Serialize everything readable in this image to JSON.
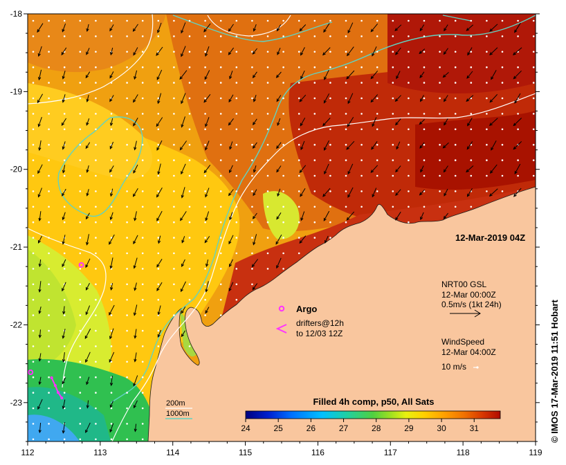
{
  "chart_data": {
    "type": "heatmap",
    "title": "Filled 4h comp, p50, All Sats",
    "xlim": [
      112,
      119
    ],
    "ylim": [
      -23.5,
      -18
    ],
    "x_ticks": [
      "112",
      "113",
      "114",
      "115",
      "116",
      "117",
      "118",
      "119"
    ],
    "y_ticks": [
      "-18",
      "-19",
      "-20",
      "-21",
      "-22",
      "-23"
    ],
    "colorbar": {
      "ticks": [
        "24",
        "25",
        "26",
        "27",
        "28",
        "29",
        "30",
        "31"
      ],
      "range": [
        24,
        31.8
      ]
    }
  },
  "annotations": {
    "date_label": "12-Mar-2019 04Z",
    "current_product": "NRT00 GSL",
    "current_time": "12-Mar 00:00Z",
    "current_scale": "0.5m/s (1kt 24h)",
    "wind_title": "WindSpeed",
    "wind_time": "12-Mar 04:00Z",
    "wind_scale": "10 m/s",
    "argo_label": "Argo",
    "drifters_label": "drifters@12h",
    "drifters_label2": "to 12/03 12Z",
    "iso_200": "200m",
    "iso_1000": "1000m",
    "credit": "© IMOS 17-Mar-2019 11:51 Hobart"
  },
  "colors": {
    "land": "#f9c69e",
    "bathy_200": "#5fd3c3",
    "bathy_1000": "#ffffff",
    "argo": "#ff33ff",
    "wind_arrow": "#000000",
    "current_dot": "#ffffff"
  },
  "argo_floats": [
    {
      "lon": 112.74,
      "lat": -21.23
    },
    {
      "lon": 112.04,
      "lat": -22.61
    }
  ],
  "drifter_tracks": [
    [
      [
        112.33,
        -22.68
      ],
      [
        112.38,
        -22.78
      ],
      [
        112.42,
        -22.87
      ],
      [
        112.47,
        -22.94
      ]
    ]
  ]
}
